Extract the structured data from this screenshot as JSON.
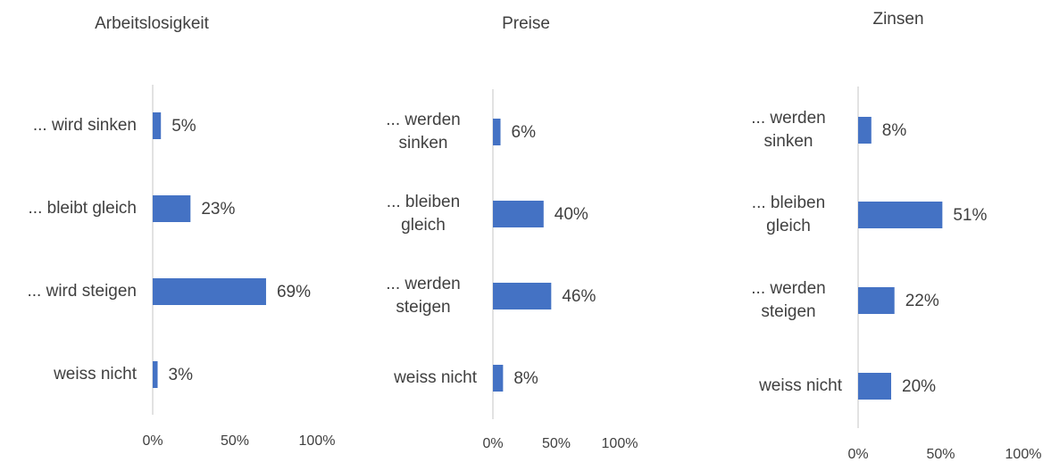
{
  "chart_data": [
    {
      "type": "bar",
      "orientation": "horizontal",
      "title": "Arbeitslosigkeit",
      "categories": [
        "... wird sinken",
        "... bleibt gleich",
        "... wird steigen",
        "weiss nicht"
      ],
      "values": [
        5,
        23,
        69,
        3
      ],
      "value_labels": [
        "5%",
        "23%",
        "69%",
        "3%"
      ],
      "color": "#4472c4",
      "xlim": [
        0,
        100
      ],
      "xticks": [
        {
          "value": 0,
          "label": "0%"
        },
        {
          "value": 50,
          "label": "50%"
        },
        {
          "value": 100,
          "label": "100%"
        }
      ]
    },
    {
      "type": "bar",
      "orientation": "horizontal",
      "title": "Preise",
      "categories": [
        "... werden sinken",
        "... bleiben gleich",
        "... werden steigen",
        "weiss nicht"
      ],
      "values": [
        6,
        40,
        46,
        8
      ],
      "value_labels": [
        "6%",
        "40%",
        "46%",
        "8%"
      ],
      "color": "#4472c4",
      "xlim": [
        0,
        100
      ],
      "xticks": [
        {
          "value": 0,
          "label": "0%"
        },
        {
          "value": 50,
          "label": "50%"
        },
        {
          "value": 100,
          "label": "100%"
        }
      ]
    },
    {
      "type": "bar",
      "orientation": "horizontal",
      "title": "Zinsen",
      "categories": [
        "... werden sinken",
        "... bleiben gleich",
        "... werden steigen",
        "weiss nicht"
      ],
      "values": [
        8,
        51,
        22,
        20
      ],
      "value_labels": [
        "8%",
        "51%",
        "22%",
        "20%"
      ],
      "color": "#4472c4",
      "xlim": [
        0,
        100
      ],
      "xticks": [
        {
          "value": 0,
          "label": "0%"
        },
        {
          "value": 50,
          "label": "50%"
        },
        {
          "value": 100,
          "label": "100%"
        }
      ]
    }
  ]
}
